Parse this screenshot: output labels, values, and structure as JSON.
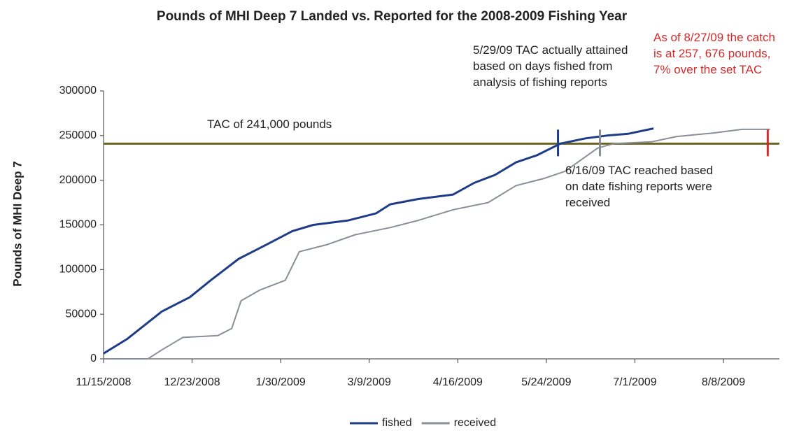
{
  "chart_data": {
    "type": "line",
    "title": "Pounds of MHI Deep 7 Landed vs. Reported for the 2008-2009 Fishing Year",
    "y_label": "Pounds of MHI Deep 7",
    "xlim": [
      "11/15/2008",
      "9/1/2009"
    ],
    "xticks": [
      "11/15/2008",
      "12/23/2008",
      "1/30/2009",
      "3/9/2009",
      "4/16/2009",
      "5/24/2009",
      "7/1/2009",
      "8/8/2009"
    ],
    "ylim": [
      0,
      300000
    ],
    "yticks": [
      0,
      50000,
      100000,
      150000,
      200000,
      250000,
      300000
    ],
    "legend": "bottom",
    "series": [
      {
        "name": "fished",
        "color": "#1f3c88",
        "x": [
          "11/15/2008",
          "11/25/2008",
          "12/10/2008",
          "12/22/2008",
          "12/31/2008",
          "1/12/2009",
          "1/24/2009",
          "2/4/2009",
          "2/13/2009",
          "2/28/2009",
          "3/12/2009",
          "3/18/2009",
          "3/30/2009",
          "4/14/2009",
          "4/23/2009",
          "5/2/2009",
          "5/11/2009",
          "5/20/2009",
          "5/30/2009",
          "6/10/2009",
          "6/19/2009",
          "6/28/2009",
          "7/9/2009"
        ],
        "values": [
          6000,
          22000,
          53000,
          69000,
          88000,
          112000,
          128000,
          143000,
          150000,
          155000,
          163000,
          173000,
          179000,
          184000,
          197000,
          206000,
          220000,
          228000,
          241000,
          247000,
          250000,
          252000,
          258000
        ]
      },
      {
        "name": "received",
        "color": "#8a8f96",
        "x": [
          "11/15/2008",
          "12/4/2008",
          "12/10/2008",
          "12/19/2008",
          "1/3/2009",
          "1/9/2009",
          "1/13/2009",
          "1/21/2009",
          "2/1/2009",
          "2/7/2009",
          "2/19/2009",
          "3/3/2009",
          "3/18/2009",
          "3/30/2009",
          "4/14/2009",
          "4/29/2009",
          "5/11/2009",
          "5/23/2009",
          "6/1/2009",
          "6/15/2009",
          "6/22/2009",
          "7/8/2009",
          "7/19/2009",
          "8/4/2009",
          "8/16/2009",
          "8/28/2009"
        ],
        "values": [
          0,
          0,
          10000,
          24000,
          26000,
          34000,
          65000,
          77000,
          88000,
          120000,
          128000,
          139000,
          147000,
          155000,
          167000,
          175000,
          194000,
          202000,
          210000,
          236000,
          241000,
          243000,
          249000,
          253000,
          257000,
          257000
        ]
      }
    ],
    "tac_line": {
      "value": 241000,
      "color": "#6b6420"
    },
    "markers": [
      {
        "x": "5/29/2009",
        "color": "#1f3c88"
      },
      {
        "x": "6/16/2009",
        "color": "#8a8f96"
      },
      {
        "x": "8/27/2009",
        "color": "#d42a2a"
      }
    ],
    "annotations": [
      {
        "text": "TAC of 241,000 pounds",
        "color": "#222222"
      },
      {
        "text": "5/29/09 TAC actually attained based on days fished from analysis of fishing reports",
        "color": "#222222"
      },
      {
        "text": "6/16/09  TAC reached based on date fishing reports were received",
        "color": "#222222"
      },
      {
        "text": "As of 8/27/09 the catch is at 257, 676 pounds, 7% over the set TAC",
        "color": "#d42a2a"
      }
    ]
  }
}
